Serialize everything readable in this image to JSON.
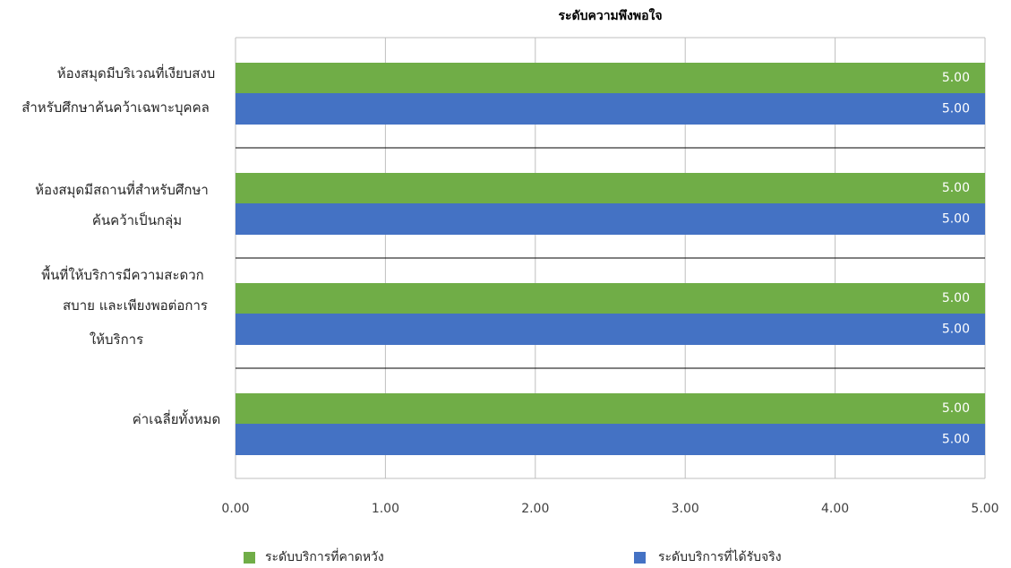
{
  "chart_data": {
    "type": "bar",
    "orientation": "horizontal",
    "title": "ระดับความพึงพอใจ",
    "categories": [
      [
        "ห้องสมุดมีบริเวณที่เงียบสงบ",
        "สำหรับศึกษาค้นคว้าเฉพาะบุคคล"
      ],
      [
        "ห้องสมุดมีสถานที่สำหรับศึกษา",
        "ค้นคว้าเป็นกลุ่ม"
      ],
      [
        "พื้นที่ให้บริการมีความสะดวก",
        "สบาย และเพียงพอต่อการ",
        "ให้บริการ"
      ],
      [
        "ค่าเฉลี่ยทั้งหมด"
      ]
    ],
    "series": [
      {
        "name": "ระดับบริการที่คาดหวัง",
        "color": "#70AD47",
        "values": [
          5,
          5,
          5,
          5
        ],
        "labels": [
          "5.00",
          "5.00",
          "5.00",
          "5.00"
        ]
      },
      {
        "name": "ระดับบริการที่ได้รับจริง",
        "color": "#4472C4",
        "values": [
          5,
          5,
          5,
          5
        ],
        "labels": [
          "5.00",
          "5.00",
          "5.00",
          "5.00"
        ]
      }
    ],
    "xlim": [
      0,
      5
    ],
    "xticks": [
      "0.00",
      "1.00",
      "2.00",
      "3.00",
      "4.00",
      "5.00"
    ],
    "grid": true,
    "legend": "bottom"
  }
}
